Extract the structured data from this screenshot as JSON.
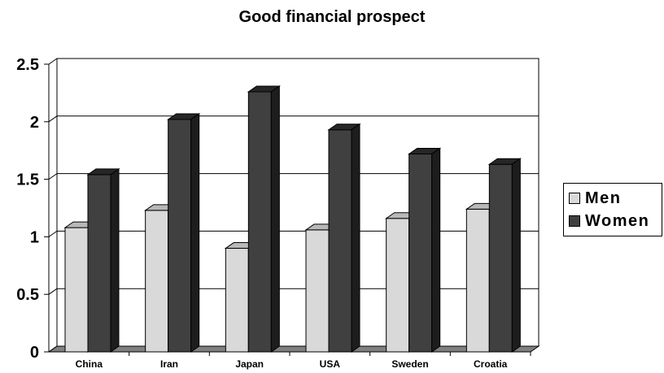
{
  "chart_data": {
    "type": "bar",
    "title": "Good financial prospect",
    "categories": [
      "China",
      "Iran",
      "Japan",
      "USA",
      "Sweden",
      "Croatia"
    ],
    "series": [
      {
        "name": "Men",
        "values": [
          1.08,
          1.23,
          0.9,
          1.06,
          1.16,
          1.24
        ],
        "color": "#d9d9d9"
      },
      {
        "name": "Women",
        "values": [
          1.54,
          2.02,
          2.26,
          1.93,
          1.72,
          1.63
        ],
        "color": "#404040"
      }
    ],
    "y_ticks": [
      "0",
      "0.5",
      "1",
      "1.5",
      "2",
      "2.5"
    ],
    "ylim": [
      0,
      2.5
    ],
    "xlabel": "",
    "ylabel": "",
    "grid": true,
    "legend_position": "right",
    "style": "3d-clustered-column"
  }
}
